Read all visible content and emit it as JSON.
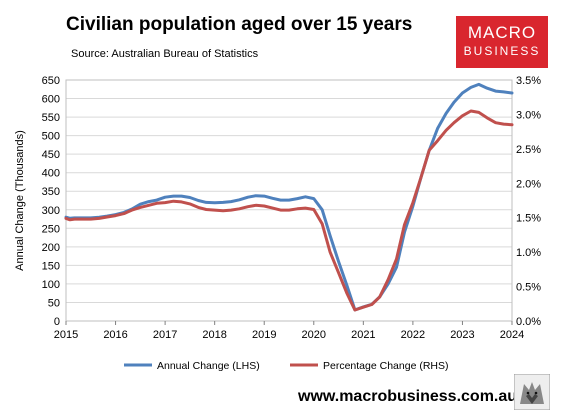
{
  "header": {
    "title": "Civilian population aged over 15 years",
    "source": "Source: Australian Bureau of Statistics"
  },
  "logo": {
    "line1": "MACRO",
    "line2": "BUSINESS"
  },
  "footer": {
    "url": "www.macrobusiness.com.au"
  },
  "colors": {
    "annual": "#4f81bd",
    "percentage": "#c0504d",
    "grid": "#d9d9d9",
    "logo_bg": "#d9262e"
  },
  "chart_data": {
    "type": "line",
    "title": "Civilian population aged over 15 years",
    "ylabel": "Annual Change (Thousands)",
    "xlim": [
      2015,
      2024
    ],
    "ylim_left": [
      0,
      650
    ],
    "ylim_right": [
      0,
      3.5
    ],
    "x_ticks": [
      "2015",
      "2016",
      "2017",
      "2018",
      "2019",
      "2020",
      "2021",
      "2022",
      "2023",
      "2024"
    ],
    "y_left_ticks": [
      "0",
      "50",
      "100",
      "150",
      "200",
      "250",
      "300",
      "350",
      "400",
      "450",
      "500",
      "550",
      "600",
      "650"
    ],
    "y_right_ticks": [
      "0.0%",
      "0.5%",
      "1.0%",
      "1.5%",
      "2.0%",
      "2.5%",
      "3.0%",
      "3.5%"
    ],
    "grid": "horizontal",
    "legend_position": "bottom",
    "series": [
      {
        "name": "Annual Change (LHS)",
        "axis": "left",
        "x": [
          2015.0,
          2015.08,
          2015.17,
          2015.33,
          2015.5,
          2015.67,
          2015.83,
          2016.0,
          2016.17,
          2016.33,
          2016.5,
          2016.67,
          2016.83,
          2017.0,
          2017.17,
          2017.33,
          2017.5,
          2017.67,
          2017.83,
          2018.0,
          2018.17,
          2018.33,
          2018.5,
          2018.67,
          2018.83,
          2019.0,
          2019.17,
          2019.33,
          2019.5,
          2019.67,
          2019.83,
          2020.0,
          2020.17,
          2020.33,
          2020.5,
          2020.67,
          2020.83,
          2021.0,
          2021.17,
          2021.33,
          2021.5,
          2021.67,
          2021.83,
          2022.0,
          2022.17,
          2022.33,
          2022.5,
          2022.67,
          2022.83,
          2023.0,
          2023.17,
          2023.33,
          2023.5,
          2023.67,
          2023.83,
          2024.0
        ],
        "values": [
          280,
          277,
          278,
          278,
          278,
          280,
          283,
          287,
          293,
          302,
          315,
          322,
          326,
          334,
          337,
          337,
          333,
          325,
          320,
          319,
          320,
          322,
          327,
          334,
          338,
          337,
          331,
          326,
          326,
          330,
          335,
          330,
          300,
          230,
          160,
          95,
          30,
          38,
          45,
          65,
          100,
          145,
          240,
          310,
          390,
          460,
          520,
          560,
          590,
          615,
          630,
          638,
          628,
          620,
          618,
          615
        ]
      },
      {
        "name": "Percentage Change (RHS)",
        "axis": "right",
        "x": [
          2015.0,
          2015.08,
          2015.17,
          2015.33,
          2015.5,
          2015.67,
          2015.83,
          2016.0,
          2016.17,
          2016.33,
          2016.5,
          2016.67,
          2016.83,
          2017.0,
          2017.17,
          2017.33,
          2017.5,
          2017.67,
          2017.83,
          2018.0,
          2018.17,
          2018.33,
          2018.5,
          2018.67,
          2018.83,
          2019.0,
          2019.17,
          2019.33,
          2019.5,
          2019.67,
          2019.83,
          2020.0,
          2020.17,
          2020.33,
          2020.5,
          2020.67,
          2020.83,
          2021.0,
          2021.17,
          2021.33,
          2021.5,
          2021.67,
          2021.83,
          2022.0,
          2022.17,
          2022.33,
          2022.5,
          2022.67,
          2022.83,
          2023.0,
          2023.17,
          2023.33,
          2023.5,
          2023.67,
          2023.83,
          2024.0
        ],
        "values": [
          1.49,
          1.47,
          1.48,
          1.48,
          1.48,
          1.49,
          1.51,
          1.53,
          1.56,
          1.61,
          1.65,
          1.68,
          1.71,
          1.72,
          1.74,
          1.73,
          1.7,
          1.65,
          1.62,
          1.61,
          1.6,
          1.61,
          1.63,
          1.66,
          1.68,
          1.67,
          1.64,
          1.61,
          1.61,
          1.63,
          1.64,
          1.62,
          1.41,
          1.0,
          0.7,
          0.4,
          0.16,
          0.2,
          0.24,
          0.35,
          0.6,
          0.9,
          1.4,
          1.72,
          2.1,
          2.48,
          2.62,
          2.77,
          2.88,
          2.98,
          3.05,
          3.03,
          2.95,
          2.88,
          2.86,
          2.85
        ]
      }
    ]
  }
}
